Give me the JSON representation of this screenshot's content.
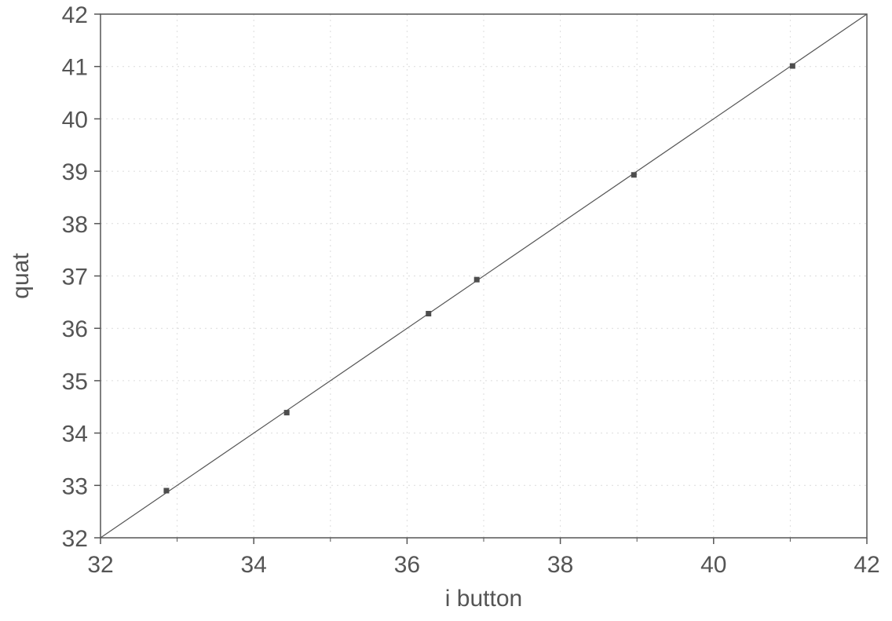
{
  "chart_data": {
    "type": "scatter",
    "title": "",
    "xlabel": "i button",
    "ylabel": "quat",
    "xlim": [
      32,
      42
    ],
    "ylim": [
      32,
      42
    ],
    "xticks": [
      32,
      34,
      36,
      38,
      40,
      42
    ],
    "yticks": [
      32,
      33,
      34,
      35,
      36,
      37,
      38,
      39,
      40,
      41,
      42
    ],
    "grid": true,
    "points": [
      {
        "x": 32.86,
        "y": 32.9
      },
      {
        "x": 34.43,
        "y": 34.39
      },
      {
        "x": 36.28,
        "y": 36.28
      },
      {
        "x": 36.91,
        "y": 36.93
      },
      {
        "x": 38.96,
        "y": 38.93
      },
      {
        "x": 41.03,
        "y": 41.01
      }
    ],
    "reference_line": {
      "from": [
        32,
        32
      ],
      "to": [
        42,
        42
      ]
    },
    "colors": {
      "axis": "#555555",
      "grid": "#dcdcdc",
      "line": "#555555",
      "marker": "#4d4d4d"
    }
  }
}
